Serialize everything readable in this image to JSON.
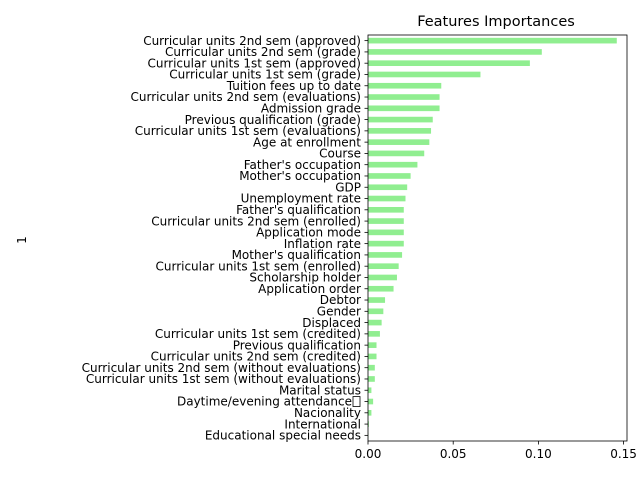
{
  "chart_data": {
    "type": "bar",
    "orientation": "horizontal",
    "title": "Features Importances",
    "xlabel": "",
    "ylabel": "1",
    "xlim": [
      0,
      0.152
    ],
    "xticks": [
      0.0,
      0.05,
      0.1,
      0.15
    ],
    "xtick_labels": [
      "0.00",
      "0.05",
      "0.10",
      "0.15"
    ],
    "bar_color": "#90ee90",
    "grid": false,
    "legend": "none",
    "categories": [
      "Curricular units 2nd sem (approved)",
      "Curricular units 2nd sem (grade)",
      "Curricular units 1st sem (approved)",
      "Curricular units 1st sem (grade)",
      "Tuition fees up to date",
      "Curricular units 2nd sem (evaluations)",
      "Admission grade",
      "Previous qualification (grade)",
      "Curricular units 1st sem (evaluations)",
      "Age at enrollment",
      "Course",
      "Father's occupation",
      "Mother's occupation",
      "GDP",
      "Unemployment rate",
      "Father's qualification",
      "Curricular units 2nd sem (enrolled)",
      "Application mode",
      "Inflation rate",
      "Mother's qualification",
      "Curricular units 1st sem (enrolled)",
      "Scholarship holder",
      "Application order",
      "Debtor",
      "Gender",
      "Displaced",
      "Curricular units 1st sem (credited)",
      "Previous qualification",
      "Curricular units 2nd sem (credited)",
      "Curricular units 2nd sem (without evaluations)",
      "Curricular units 1st sem (without evaluations)",
      "Marital status",
      "Daytime/evening attendance\t",
      "Nacionality",
      "International",
      "Educational special needs"
    ],
    "values": [
      0.146,
      0.102,
      0.095,
      0.066,
      0.043,
      0.042,
      0.042,
      0.038,
      0.037,
      0.036,
      0.033,
      0.029,
      0.025,
      0.023,
      0.022,
      0.021,
      0.021,
      0.021,
      0.021,
      0.02,
      0.018,
      0.017,
      0.015,
      0.01,
      0.009,
      0.008,
      0.007,
      0.005,
      0.005,
      0.004,
      0.004,
      0.002,
      0.003,
      0.002,
      0.0005,
      0.0002
    ]
  }
}
